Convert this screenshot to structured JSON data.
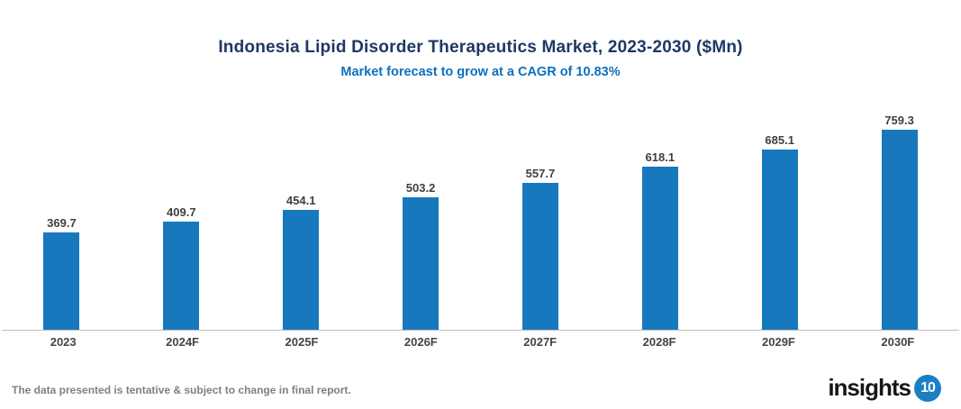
{
  "chart_data": {
    "type": "bar",
    "title": "Indonesia Lipid Disorder Therapeutics Market, 2023-2030 ($Mn)",
    "subtitle": "Market forecast to grow at a CAGR of 10.83%",
    "categories": [
      "2023",
      "2024F",
      "2025F",
      "2026F",
      "2027F",
      "2028F",
      "2029F",
      "2030F"
    ],
    "values": [
      369.7,
      409.7,
      454.1,
      503.2,
      557.7,
      618.1,
      685.1,
      759.3
    ],
    "xlabel": "",
    "ylabel": "",
    "ylim": [
      0,
      900
    ],
    "grid": false,
    "legend": false,
    "data_labels": true,
    "bar_color": "#1878BE"
  },
  "colors": {
    "title": "#1F3864",
    "subtitle": "#0B70C0",
    "bar": "#1878BE",
    "value_label": "#404040",
    "category_label": "#444444",
    "axis_line": "#BFBFBF",
    "disclaimer": "#808080",
    "logo_badge_bg": "#1B7FC4"
  },
  "footer": {
    "disclaimer": "The data presented is tentative & subject to change in final report.",
    "logo_text": "insights",
    "logo_badge": "10"
  }
}
